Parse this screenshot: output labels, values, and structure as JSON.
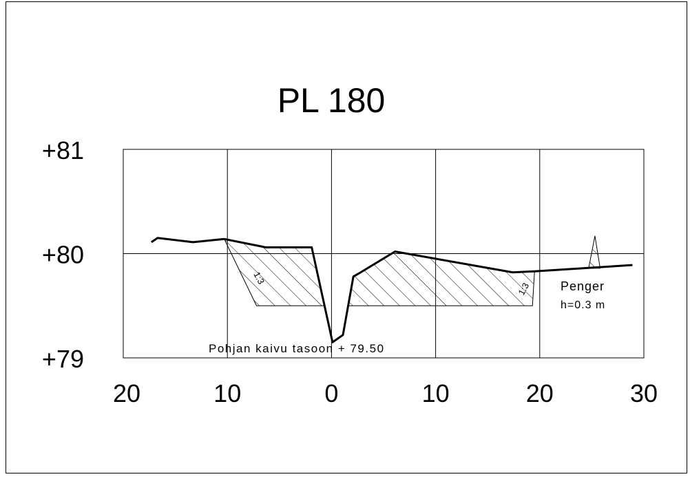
{
  "title": "PL 180",
  "y_labels": [
    "+81",
    "+80",
    "+79"
  ],
  "x_labels": [
    "20",
    "10",
    "0",
    "10",
    "20",
    "30"
  ],
  "slope_labels": [
    "1:3",
    "1:3"
  ],
  "notes": {
    "penger": "Penger",
    "penger_height": "h=0.3 m",
    "bottom": "Pohjan kaivu tasoon + 79.50"
  },
  "colors": {
    "line": "#000000",
    "background": "#ffffff"
  },
  "chart_data": {
    "type": "line",
    "title": "PL 180",
    "xlabel": "",
    "ylabel": "",
    "x_ticks": [
      -20,
      -10,
      0,
      10,
      20,
      30
    ],
    "x_tick_labels": [
      "20",
      "10",
      "0",
      "10",
      "20",
      "30"
    ],
    "y_ticks": [
      79,
      80,
      81
    ],
    "y_tick_labels": [
      "+79",
      "+80",
      "+81"
    ],
    "xlim": [
      -20,
      30
    ],
    "ylim": [
      79,
      81
    ],
    "grid": true,
    "series": [
      {
        "x": [
          -17.3,
          -16.7,
          -13.3,
          -10.3,
          -6.3,
          -1.9,
          0.1,
          1.1,
          2.1,
          2.8,
          6.1,
          17.4,
          19.5,
          28.9
        ],
        "y": [
          80.11,
          80.15,
          80.11,
          80.14,
          80.06,
          80.06,
          79.15,
          79.22,
          79.78,
          79.82,
          80.02,
          79.82,
          79.83,
          79.89
        ]
      }
    ],
    "excavation_bottom": {
      "x": [
        -7.2,
        19.3
      ],
      "y": 79.5
    },
    "embankment": {
      "x": [
        24.7,
        25.3,
        25.8
      ],
      "y": [
        79.86,
        80.17,
        79.86
      ]
    }
  }
}
